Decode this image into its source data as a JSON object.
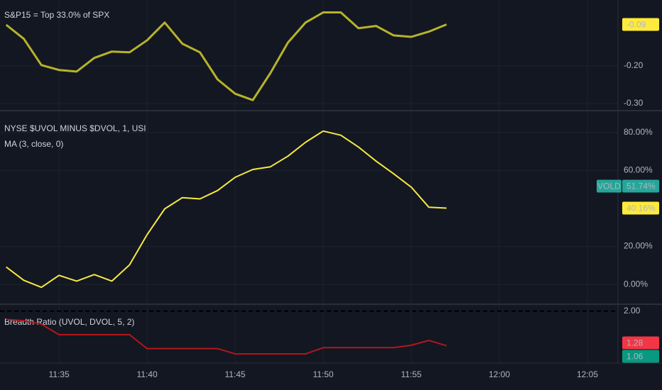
{
  "chart_data": [
    {
      "type": "line",
      "title": "S&P15 = Top 33.0% of SPX",
      "x": [
        "11:32",
        "11:33",
        "11:34",
        "11:35",
        "11:36",
        "11:37",
        "11:38",
        "11:39",
        "11:40",
        "11:41",
        "11:42",
        "11:43",
        "11:44",
        "11:45",
        "11:46",
        "11:47",
        "11:48",
        "11:49",
        "11:50",
        "11:51",
        "11:52",
        "11:53",
        "11:54",
        "11:55",
        "11:56",
        "11:57"
      ],
      "values": [
        -0.091,
        -0.128,
        -0.198,
        -0.211,
        -0.215,
        -0.179,
        -0.162,
        -0.164,
        -0.132,
        -0.085,
        -0.141,
        -0.164,
        -0.236,
        -0.274,
        -0.291,
        -0.219,
        -0.138,
        -0.085,
        -0.058,
        -0.058,
        -0.1,
        -0.094,
        -0.119,
        -0.123,
        -0.109,
        -0.09
      ],
      "color": "#b7b32a",
      "ylim": [
        -0.317,
        -0.025
      ],
      "yticks": [
        {
          "value": -0.2,
          "label": "-0.20"
        },
        {
          "value": -0.3,
          "label": "-0.30"
        }
      ],
      "grid": true,
      "markers": [
        {
          "value": -0.09,
          "color": "#ffeb3b"
        }
      ]
    },
    {
      "type": "line",
      "title": "NYSE $UVOL MINUS $DVOL, 1, USI",
      "subtitle": "MA (3, close, 0)",
      "x": [
        "11:32",
        "11:33",
        "11:34",
        "11:35",
        "11:36",
        "11:37",
        "11:38",
        "11:39",
        "11:40",
        "11:41",
        "11:42",
        "11:43",
        "11:44",
        "11:45",
        "11:46",
        "11:47",
        "11:48",
        "11:49",
        "11:50",
        "11:51",
        "11:52",
        "11:53",
        "11:54",
        "11:55",
        "11:56",
        "11:57"
      ],
      "values": [
        9.2,
        2.2,
        -1.5,
        4.8,
        1.8,
        5.2,
        1.8,
        10.3,
        26.2,
        39.8,
        45.7,
        45.0,
        49.4,
        56.4,
        60.5,
        61.9,
        67.5,
        74.8,
        80.7,
        78.5,
        72.3,
        64.9,
        58.2,
        51.2,
        40.6,
        40.16
      ],
      "color": "#f7e842",
      "ylim": [
        -10,
        90.7
      ],
      "yticks": [
        {
          "value": 0,
          "label": "0.00%"
        },
        {
          "value": 20,
          "label": "20.00%"
        },
        {
          "value": 60,
          "label": "60.00%"
        },
        {
          "value": 80,
          "label": "80.00%"
        }
      ],
      "grid": true,
      "markers": [
        {
          "value": 40.16,
          "label": "40.16%",
          "color": "#ffeb3b"
        },
        {
          "name": "VOLD",
          "value": 51.74,
          "label": "51.74%",
          "color": "#26a69a"
        }
      ]
    },
    {
      "type": "line",
      "title": "Breadth Ratio (UVOL, DVOL, 5, 2)",
      "x": [
        "11:32",
        "11:33",
        "11:34",
        "11:35",
        "11:36",
        "11:37",
        "11:38",
        "11:39",
        "11:40",
        "11:41",
        "11:42",
        "11:43",
        "11:44",
        "11:45",
        "11:46",
        "11:47",
        "11:48",
        "11:49",
        "11:50",
        "11:51",
        "11:52",
        "11:53",
        "11:54",
        "11:55",
        "11:56",
        "11:57"
      ],
      "values": [
        1.83,
        1.8,
        1.73,
        1.51,
        1.51,
        1.51,
        1.51,
        1.51,
        1.22,
        1.22,
        1.22,
        1.22,
        1.22,
        1.11,
        1.11,
        1.11,
        1.11,
        1.11,
        1.24,
        1.24,
        1.24,
        1.24,
        1.24,
        1.29,
        1.39,
        1.28
      ],
      "color": "#b2171b",
      "ylim": [
        0.934,
        2.115
      ],
      "yticks": [
        {
          "value": 2,
          "label": "2.00"
        }
      ],
      "grid": true,
      "grid_style": "dashed",
      "markers": [
        {
          "value": 1.28,
          "color": "#f23645"
        },
        {
          "value": 1.06,
          "color": "#089981"
        }
      ]
    }
  ],
  "x_axis": {
    "xlim": [
      "11:31:39",
      "12:06:44"
    ],
    "xticks": [
      "11:35",
      "11:40",
      "11:45",
      "11:50",
      "11:55",
      "12:00",
      "12:05"
    ]
  }
}
